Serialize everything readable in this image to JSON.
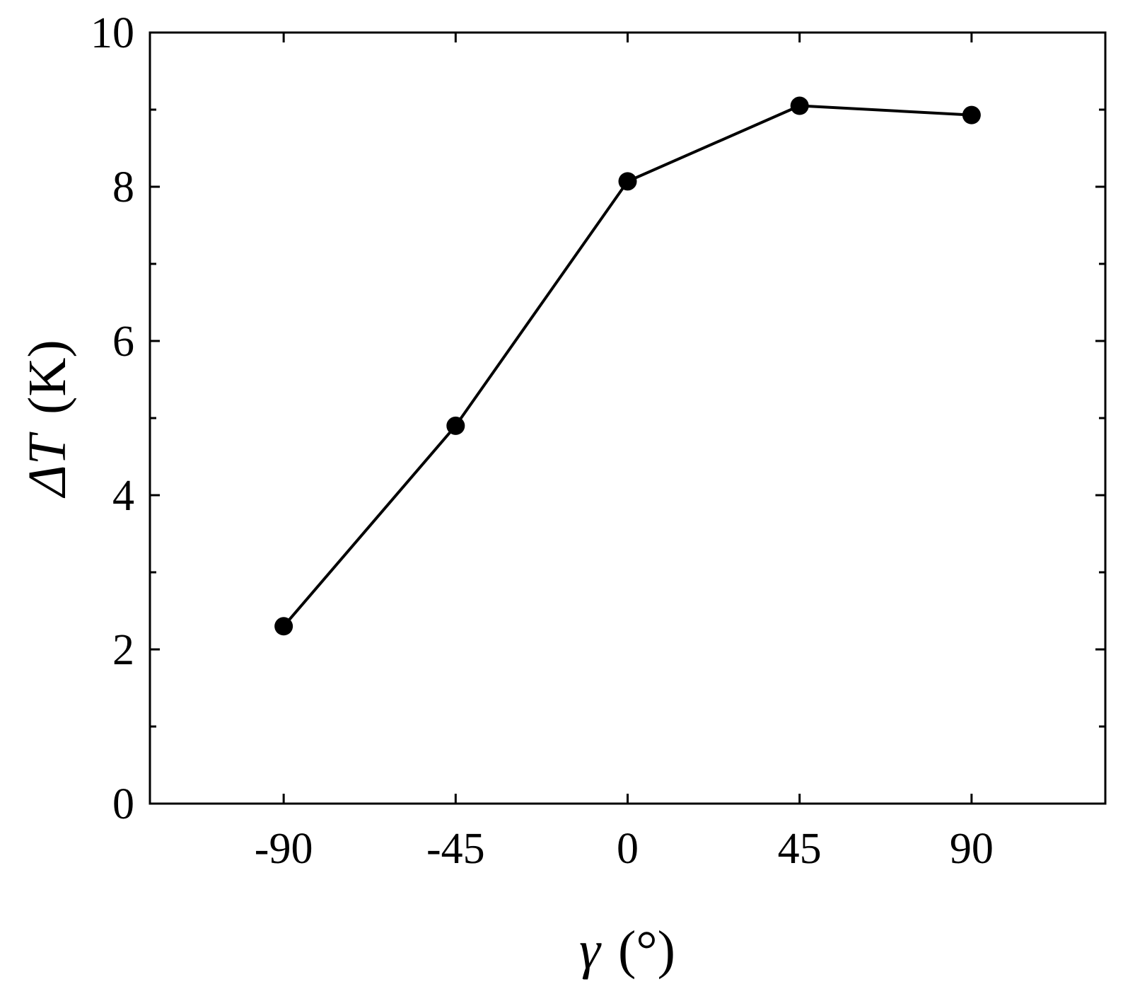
{
  "chart_data": {
    "type": "line",
    "x": [
      -90,
      -45,
      0,
      45,
      90
    ],
    "series": [
      {
        "values": [
          2.3,
          4.9,
          8.07,
          9.05,
          8.93
        ]
      }
    ],
    "xlabel": {
      "symbol": "γ",
      "unit": "(°)"
    },
    "ylabel": {
      "symbol": "ΔT",
      "unit": "(K)"
    },
    "xlim": [
      -125,
      125
    ],
    "ylim": [
      0,
      10
    ],
    "xticks": [
      -90,
      -45,
      0,
      45,
      90
    ],
    "xtick_labels": [
      "-90",
      "-45",
      "0",
      "45",
      "90"
    ],
    "yticks": [
      0,
      2,
      4,
      6,
      8,
      10
    ],
    "ytick_labels": [
      "0",
      "2",
      "4",
      "6",
      "8",
      "10"
    ],
    "yminor_ticks": [
      1,
      3,
      5,
      7,
      9
    ],
    "grid": false,
    "marker": "filled-circle",
    "colors": {
      "line": "#000000",
      "marker": "#000000",
      "frame": "#000000"
    }
  }
}
